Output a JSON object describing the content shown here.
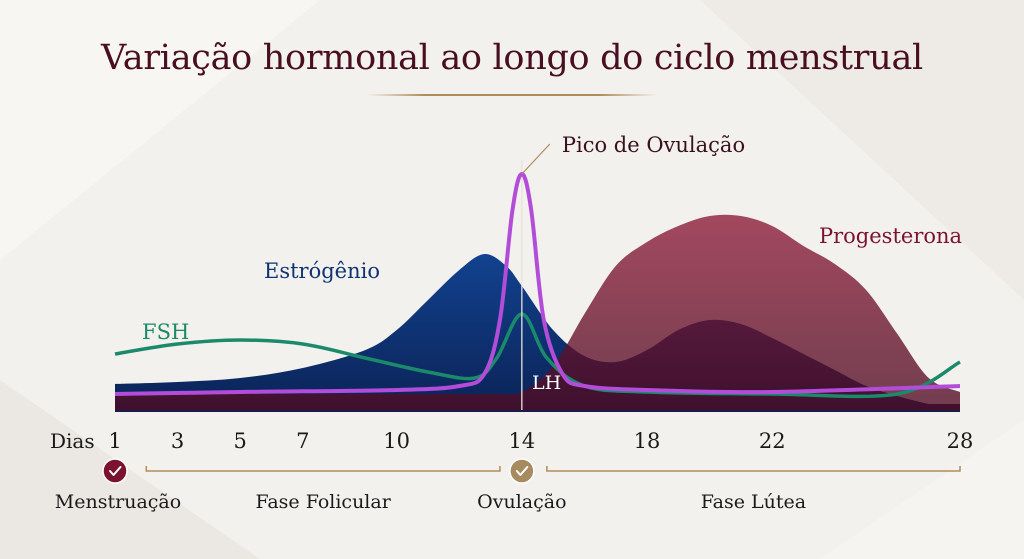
{
  "title": "Variação hormonal ao longo do ciclo menstrual",
  "colors": {
    "title": "#4a0e22",
    "estrogen": "#0f3473",
    "progesterone": "#7a1230",
    "lh": "#b34dd9",
    "fsh": "#1b8a6b",
    "phase_line": "#b08c5c",
    "menstruation_badge": "#7a1230",
    "ovulation_badge": "#a88a5f"
  },
  "chart_data": {
    "type": "area",
    "title": "Variação hormonal ao longo do ciclo menstrual",
    "xlabel": "Dias",
    "xlim": [
      1,
      28
    ],
    "x_ticks": [
      1,
      3,
      5,
      7,
      10,
      14,
      18,
      22,
      28
    ],
    "y_axis_shown": false,
    "grid": false,
    "series": [
      {
        "name": "Estrógênio",
        "type": "area",
        "x": [
          1,
          3,
          5,
          7,
          9,
          10,
          11,
          12,
          12.8,
          13.5,
          14,
          15,
          16,
          17,
          18,
          19,
          20,
          21,
          22,
          23,
          24,
          25,
          26,
          27,
          28
        ],
        "y": [
          13,
          14,
          16,
          21,
          30,
          40,
          55,
          70,
          78,
          72,
          62,
          40,
          27,
          24,
          30,
          40,
          45,
          43,
          36,
          28,
          20,
          12,
          7,
          3,
          0
        ]
      },
      {
        "name": "Progesterona",
        "type": "area",
        "x": [
          1,
          5,
          10,
          13,
          14,
          15,
          16,
          17,
          18,
          19,
          20,
          21,
          22,
          23,
          24,
          25,
          26,
          27,
          28
        ],
        "y": [
          8,
          8,
          8,
          8,
          9,
          22,
          48,
          72,
          84,
          92,
          97,
          97,
          92,
          82,
          73,
          60,
          38,
          16,
          9
        ]
      },
      {
        "name": "LH",
        "type": "line",
        "x": [
          1,
          5,
          10,
          12,
          12.8,
          13.3,
          13.7,
          14,
          14.3,
          14.7,
          15.3,
          16,
          18,
          22,
          28
        ],
        "y": [
          8,
          9,
          10,
          12,
          18,
          45,
          100,
          118,
          100,
          45,
          18,
          12,
          10,
          9,
          12
        ]
      },
      {
        "name": "FSH",
        "type": "line",
        "x": [
          1,
          3,
          5,
          7,
          9,
          11,
          12.5,
          13.2,
          14,
          14.8,
          16,
          18,
          22,
          26,
          28
        ],
        "y": [
          28,
          33,
          35,
          33,
          26,
          19,
          16,
          26,
          48,
          26,
          12,
          9,
          8,
          8,
          24
        ]
      }
    ],
    "annotations": [
      {
        "text": "Pico de Ovulação",
        "x": 14
      }
    ],
    "phases": [
      {
        "label": "Menstruação",
        "marker": "check",
        "badge": "menstruation_badge"
      },
      {
        "label": "Fase Folicular",
        "from": 2,
        "to": 13.3
      },
      {
        "label": "Ovulação",
        "marker": "check",
        "badge": "ovulation_badge"
      },
      {
        "label": "Fase Lútea",
        "from": 14.8,
        "to": 28
      }
    ]
  }
}
